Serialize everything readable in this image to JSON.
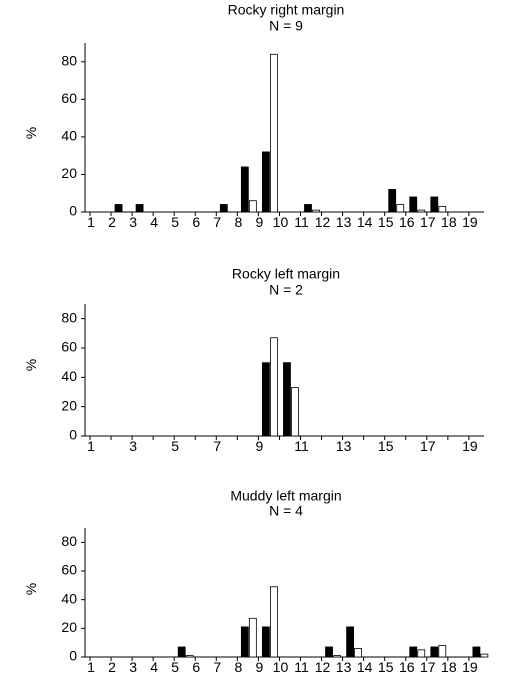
{
  "chart_data": [
    {
      "type": "bar",
      "title": "Rocky right margin",
      "subtitle": "N = 9",
      "ylabel": "%",
      "xlabel": "",
      "ylim": [
        0,
        90
      ],
      "yticks": [
        0,
        20,
        40,
        60,
        80
      ],
      "categories": [
        1,
        2,
        3,
        4,
        5,
        6,
        7,
        8,
        9,
        10,
        11,
        12,
        13,
        14,
        15,
        16,
        17,
        18,
        19
      ],
      "xtick_labels": [
        "1",
        "2",
        "3",
        "4",
        "5",
        "6",
        "7",
        "8",
        "9",
        "10",
        "11",
        "12",
        "13",
        "14",
        "15",
        "16",
        "17",
        "18",
        "19"
      ],
      "series": [
        {
          "style": "filled",
          "values": [
            0,
            4,
            4,
            0,
            0,
            0,
            4,
            24,
            32,
            0,
            4,
            0,
            0,
            0,
            12,
            8,
            8,
            0,
            0
          ]
        },
        {
          "style": "open",
          "values": [
            0,
            0,
            0,
            0,
            0,
            0,
            0,
            6,
            84,
            0,
            1,
            0,
            0,
            0,
            4,
            1,
            3,
            0,
            0
          ]
        }
      ]
    },
    {
      "type": "bar",
      "title": "Rocky left margin",
      "subtitle": "N = 2",
      "ylabel": "%",
      "xlabel": "",
      "ylim": [
        0,
        90
      ],
      "yticks": [
        0,
        20,
        40,
        60,
        80
      ],
      "categories": [
        1,
        2,
        3,
        4,
        5,
        6,
        7,
        8,
        9,
        10,
        11,
        12,
        13,
        14,
        15,
        16,
        17,
        18,
        19
      ],
      "xtick_labels": [
        "1",
        "",
        "3",
        "",
        "5",
        "",
        "7",
        "",
        "9",
        "",
        "11",
        "",
        "13",
        "",
        "15",
        "",
        "17",
        "",
        "19"
      ],
      "series": [
        {
          "style": "filled",
          "values": [
            0,
            0,
            0,
            0,
            0,
            0,
            0,
            0,
            50,
            50,
            0,
            0,
            0,
            0,
            0,
            0,
            0,
            0,
            0
          ]
        },
        {
          "style": "open",
          "values": [
            0,
            0,
            0,
            0,
            0,
            0,
            0,
            0,
            67,
            33,
            0,
            0,
            0,
            0,
            0,
            0,
            0,
            0,
            0
          ]
        }
      ]
    },
    {
      "type": "bar",
      "title": "Muddy left margin",
      "subtitle": "N = 4",
      "ylabel": "%",
      "xlabel": "",
      "ylim": [
        0,
        90
      ],
      "yticks": [
        0,
        20,
        40,
        60,
        80
      ],
      "categories": [
        1,
        2,
        3,
        4,
        5,
        6,
        7,
        8,
        9,
        10,
        11,
        12,
        13,
        14,
        15,
        16,
        17,
        18,
        19
      ],
      "xtick_labels": [
        "1",
        "2",
        "3",
        "4",
        "5",
        "6",
        "7",
        "8",
        "9",
        "10",
        "11",
        "12",
        "13",
        "14",
        "15",
        "16",
        "17",
        "18",
        "19"
      ],
      "series": [
        {
          "style": "filled",
          "values": [
            0,
            0,
            0,
            0,
            7,
            0,
            0,
            21,
            21,
            0,
            0,
            7,
            21,
            0,
            0,
            7,
            7,
            0,
            7
          ]
        },
        {
          "style": "open",
          "values": [
            0,
            0,
            0,
            0,
            1,
            0,
            0,
            27,
            49,
            0,
            0,
            1,
            6,
            0,
            0,
            5,
            8,
            0,
            2
          ]
        }
      ]
    }
  ]
}
